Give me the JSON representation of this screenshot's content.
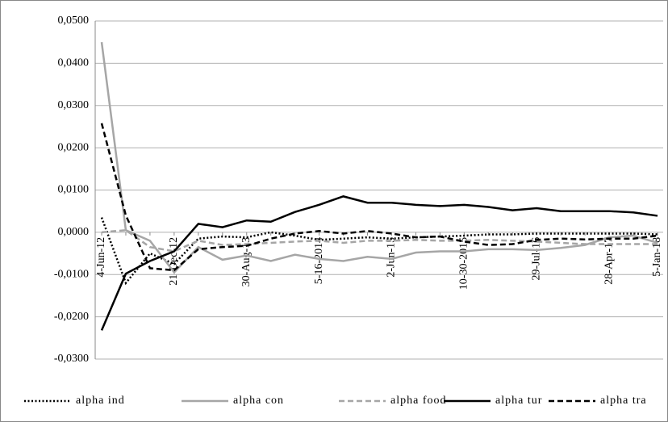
{
  "chart_data": {
    "type": "line",
    "categories": [
      "4-Jun-12",
      null,
      null,
      "21-Dec-12",
      null,
      null,
      "30-Aug-13",
      null,
      null,
      "5-16-2014",
      null,
      null,
      "2-Jun-15",
      null,
      null,
      "10-30-2015",
      null,
      null,
      "29-Jul-16",
      null,
      null,
      "28-Apr-17",
      null,
      "5-Jan-18"
    ],
    "series": [
      {
        "name": "alpha ind",
        "color": "#000000",
        "style": "dotted",
        "values": [
          0.0035,
          -0.012,
          -0.005,
          -0.0075,
          -0.0015,
          -0.001,
          -0.0012,
          0.0,
          -0.0008,
          -0.0018,
          -0.0015,
          -0.0012,
          -0.0015,
          -0.0012,
          -0.001,
          -0.0008,
          -0.0005,
          -0.0005,
          -0.0003,
          -0.0003,
          -0.0003,
          -0.0003,
          -0.0003,
          -0.0005
        ]
      },
      {
        "name": "alpha con",
        "color": "#a6a6a6",
        "style": "solid",
        "values": [
          0.045,
          0.0005,
          -0.002,
          -0.0095,
          -0.0035,
          -0.0065,
          -0.0055,
          -0.0068,
          -0.0053,
          -0.0063,
          -0.0068,
          -0.0058,
          -0.0063,
          -0.0048,
          -0.0045,
          -0.0045,
          -0.004,
          -0.004,
          -0.0042,
          -0.0037,
          -0.003,
          -0.0012,
          -0.0008,
          -0.0025
        ]
      },
      {
        "name": "alpha food",
        "color": "#a6a6a6",
        "style": "dashed",
        "values": [
          0.0,
          0.0005,
          -0.0035,
          -0.0045,
          -0.002,
          -0.003,
          -0.0028,
          -0.0025,
          -0.0022,
          -0.002,
          -0.0025,
          -0.002,
          -0.002,
          -0.0018,
          -0.002,
          -0.002,
          -0.0018,
          -0.002,
          -0.0022,
          -0.0025,
          -0.0028,
          -0.0028,
          -0.0028,
          -0.0028
        ]
      },
      {
        "name": "alpha tur",
        "color": "#000000",
        "style": "solid",
        "values": [
          -0.0232,
          -0.0098,
          -0.0068,
          -0.0045,
          0.002,
          0.0012,
          0.0028,
          0.0025,
          0.0048,
          0.0065,
          0.0085,
          0.007,
          0.007,
          0.0065,
          0.0062,
          0.0065,
          0.006,
          0.0052,
          0.0057,
          0.005,
          0.005,
          0.005,
          0.0047,
          0.0039
        ]
      },
      {
        "name": "alpha tra",
        "color": "#000000",
        "style": "dashed",
        "values": [
          0.0258,
          0.004,
          -0.0085,
          -0.009,
          -0.004,
          -0.0035,
          -0.0032,
          -0.0015,
          -0.0003,
          0.0003,
          -0.0003,
          0.0003,
          -0.0003,
          -0.0012,
          -0.001,
          -0.0022,
          -0.003,
          -0.0028,
          -0.0018,
          -0.0015,
          -0.0017,
          -0.0015,
          -0.0015,
          -0.0008
        ]
      }
    ],
    "ylim": [
      -0.03,
      0.05
    ],
    "yticks": [
      {
        "value": -0.03,
        "label": "-0,0300"
      },
      {
        "value": -0.02,
        "label": "-0,0200"
      },
      {
        "value": -0.01,
        "label": "-0,0100"
      },
      {
        "value": 0,
        "label": "0,0000"
      },
      {
        "value": 0.01,
        "label": "0,0100"
      },
      {
        "value": 0.02,
        "label": "0,0200"
      },
      {
        "value": 0.03,
        "label": "0,0300"
      },
      {
        "value": 0.04,
        "label": "0,0400"
      },
      {
        "value": 0.05,
        "label": "0,0500"
      }
    ],
    "grid": true,
    "legend": "bottom"
  }
}
